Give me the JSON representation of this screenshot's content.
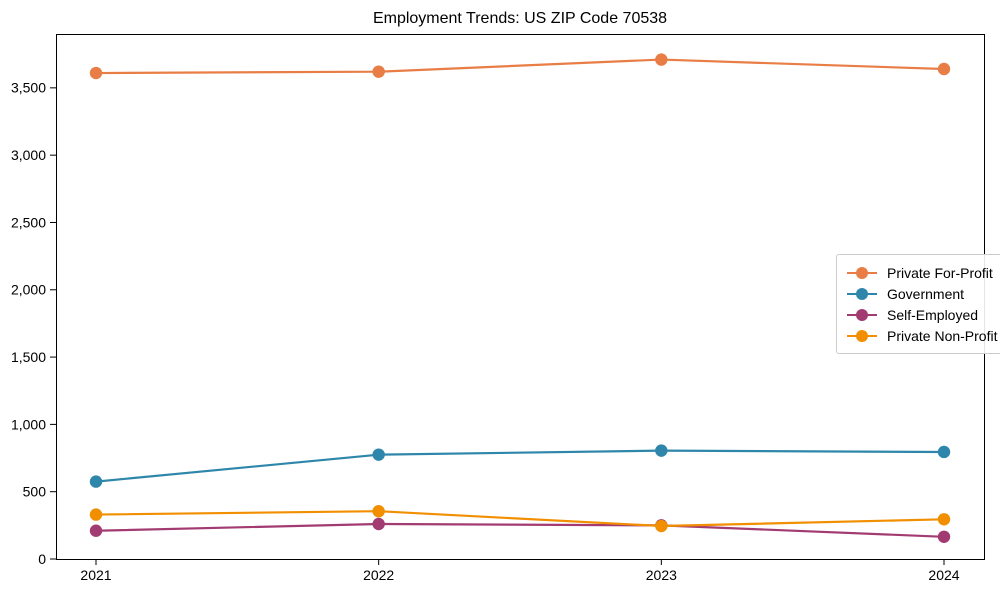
{
  "title": "Employment Trends: US ZIP Code 70538",
  "chart_data": {
    "type": "line",
    "title": "Employment Trends: US ZIP Code 70538",
    "xlabel": "",
    "ylabel": "",
    "x_categories": [
      "2021",
      "2022",
      "2023",
      "2024"
    ],
    "series": [
      {
        "name": "Private For-Profit",
        "color": "#E87D45",
        "values": [
          3610,
          3620,
          3710,
          3640
        ]
      },
      {
        "name": "Government",
        "color": "#2E86AB",
        "values": [
          575,
          775,
          805,
          795
        ]
      },
      {
        "name": "Self-Employed",
        "color": "#A23B72",
        "values": [
          210,
          260,
          250,
          165
        ]
      },
      {
        "name": "Private Non-Profit",
        "color": "#F18F01",
        "values": [
          330,
          355,
          245,
          295
        ]
      }
    ],
    "ylim": [
      0,
      3900
    ],
    "y_ticks": [
      {
        "value": 0,
        "label": "0"
      },
      {
        "value": 500,
        "label": "500"
      },
      {
        "value": 1000,
        "label": "1,000"
      },
      {
        "value": 1500,
        "label": "1,500"
      },
      {
        "value": 2000,
        "label": "2,000"
      },
      {
        "value": 2500,
        "label": "2,500"
      },
      {
        "value": 3000,
        "label": "3,000"
      },
      {
        "value": 3500,
        "label": "3,500"
      }
    ],
    "grid": false,
    "legend_position": "center right",
    "marker": "circle",
    "axis_color": "#000000"
  }
}
